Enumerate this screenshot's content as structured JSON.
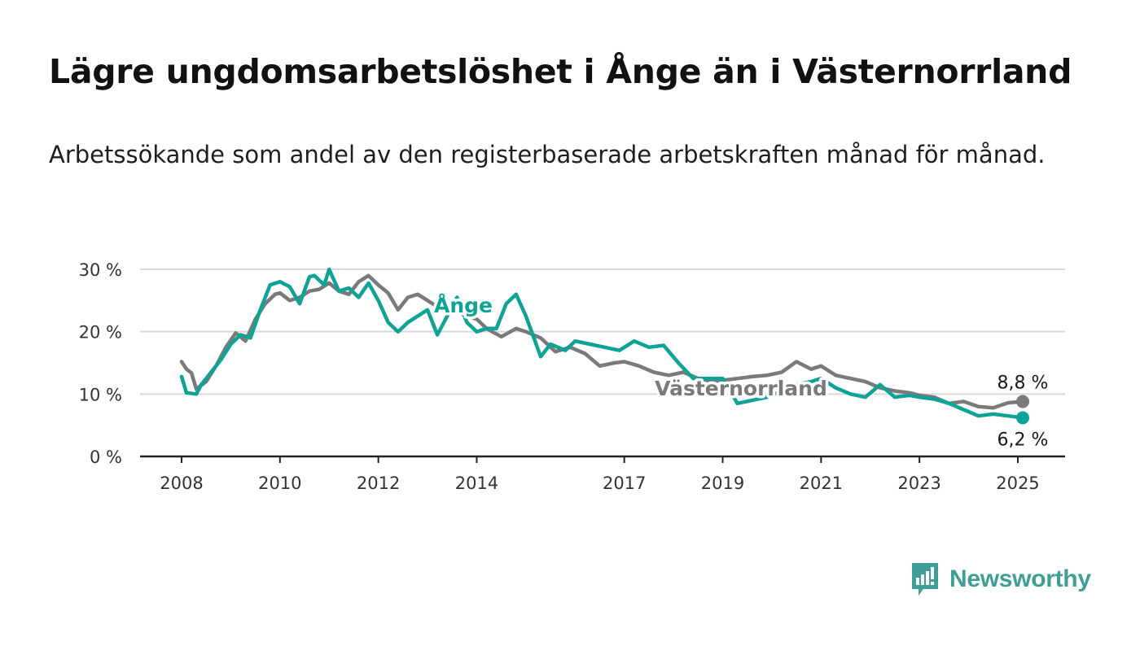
{
  "title": "Lägre ungdomsarbetslöshet i Ånge än i Västernorrland",
  "subtitle": "Arbetssökande som andel av den registerbaserade arbetskraften månad för månad.",
  "brand": {
    "name": "Newsworthy",
    "color": "#3f9f97",
    "icon": "newsworthy-bar-chart-icon"
  },
  "colors": {
    "ange": "#0ea396",
    "vasternorrland": "#7a7a7d",
    "grid": "#d9d9d9",
    "axis": "#222222"
  },
  "chart_data": {
    "type": "line",
    "xlim": [
      2008.0,
      2025.1
    ],
    "ylim": [
      0,
      30
    ],
    "ytick_values": [
      0,
      10,
      20,
      30
    ],
    "ytick_labels": [
      "0 %",
      "10 %",
      "20 %",
      "30 %"
    ],
    "xtick_values": [
      2008,
      2010,
      2012,
      2014,
      2017,
      2019,
      2021,
      2023,
      2025
    ],
    "xtick_labels": [
      "2008",
      "2010",
      "2012",
      "2014",
      "2017",
      "2019",
      "2021",
      "2023",
      "2025"
    ],
    "grid": true,
    "series": [
      {
        "name": "Västernorrland",
        "key": "vasternorrland",
        "end_label": "8,8 %",
        "x": [
          2008.0,
          2008.1,
          2008.2,
          2008.3,
          2008.5,
          2008.7,
          2008.9,
          2009.1,
          2009.3,
          2009.5,
          2009.7,
          2009.9,
          2010.0,
          2010.2,
          2010.4,
          2010.6,
          2010.8,
          2011.0,
          2011.2,
          2011.4,
          2011.6,
          2011.8,
          2012.0,
          2012.2,
          2012.4,
          2012.6,
          2012.8,
          2013.0,
          2013.2,
          2013.5,
          2013.8,
          2014.0,
          2014.2,
          2014.5,
          2014.8,
          2015.0,
          2015.3,
          2015.6,
          2015.9,
          2016.2,
          2016.5,
          2016.8,
          2017.0,
          2017.3,
          2017.6,
          2017.9,
          2018.2,
          2018.5,
          2018.8,
          2019.0,
          2019.3,
          2019.6,
          2019.9,
          2020.2,
          2020.5,
          2020.8,
          2021.0,
          2021.3,
          2021.6,
          2021.9,
          2022.2,
          2022.5,
          2022.8,
          2023.0,
          2023.3,
          2023.6,
          2023.9,
          2024.2,
          2024.5,
          2024.8,
          2025.1
        ],
        "y": [
          15.2,
          14.0,
          13.4,
          10.8,
          12.0,
          14.5,
          17.5,
          19.8,
          18.5,
          22.0,
          24.5,
          26.0,
          26.2,
          25.0,
          25.5,
          26.5,
          26.8,
          27.8,
          26.5,
          26.0,
          28.0,
          29.0,
          27.5,
          26.2,
          23.5,
          25.5,
          26.0,
          25.0,
          24.0,
          23.5,
          22.5,
          22.0,
          20.5,
          19.2,
          20.5,
          20.0,
          19.0,
          16.8,
          17.5,
          16.5,
          14.5,
          15.0,
          15.2,
          14.5,
          13.5,
          13.0,
          13.5,
          12.5,
          12.0,
          12.2,
          12.5,
          12.8,
          13.0,
          13.5,
          15.2,
          14.0,
          14.5,
          13.0,
          12.5,
          12.0,
          11.0,
          10.5,
          10.2,
          9.8,
          9.5,
          8.5,
          8.8,
          8.0,
          7.8,
          8.6,
          8.8
        ]
      },
      {
        "name": "Ånge",
        "key": "ange",
        "end_label": "6,2 %",
        "x": [
          2008.0,
          2008.1,
          2008.3,
          2008.4,
          2008.6,
          2008.8,
          2009.0,
          2009.2,
          2009.4,
          2009.6,
          2009.8,
          2010.0,
          2010.2,
          2010.4,
          2010.6,
          2010.7,
          2010.9,
          2011.0,
          2011.2,
          2011.4,
          2011.6,
          2011.8,
          2012.0,
          2012.2,
          2012.4,
          2012.6,
          2012.8,
          2013.0,
          2013.2,
          2013.4,
          2013.6,
          2013.8,
          2014.0,
          2014.2,
          2014.4,
          2014.6,
          2014.8,
          2015.0,
          2015.3,
          2015.5,
          2015.8,
          2016.0,
          2016.3,
          2016.6,
          2016.9,
          2017.2,
          2017.5,
          2017.8,
          2018.1,
          2018.4,
          2018.7,
          2019.0,
          2019.3,
          2019.6,
          2019.9,
          2020.2,
          2020.5,
          2020.8,
          2021.0,
          2021.3,
          2021.6,
          2021.9,
          2022.2,
          2022.5,
          2022.8,
          2023.0,
          2023.3,
          2023.6,
          2023.9,
          2024.2,
          2024.5,
          2024.8,
          2025.1
        ],
        "y": [
          12.8,
          10.2,
          10.0,
          11.5,
          13.5,
          15.5,
          18.0,
          19.5,
          19.0,
          23.5,
          27.5,
          28.0,
          27.2,
          24.5,
          28.8,
          29.0,
          27.5,
          30.0,
          26.5,
          27.0,
          25.5,
          27.8,
          25.0,
          21.5,
          20.0,
          21.5,
          22.5,
          23.5,
          19.5,
          22.5,
          25.5,
          21.5,
          20.0,
          20.5,
          20.5,
          24.5,
          26.0,
          22.5,
          16.0,
          18.0,
          17.0,
          18.5,
          18.0,
          17.5,
          17.0,
          18.5,
          17.5,
          17.8,
          15.0,
          12.5,
          12.5,
          12.5,
          8.5,
          9.0,
          9.5,
          10.5,
          11.5,
          12.0,
          12.5,
          11.0,
          10.0,
          9.5,
          11.5,
          9.5,
          9.8,
          9.5,
          9.2,
          8.5,
          7.5,
          6.5,
          6.8,
          6.5,
          6.2
        ]
      }
    ]
  }
}
